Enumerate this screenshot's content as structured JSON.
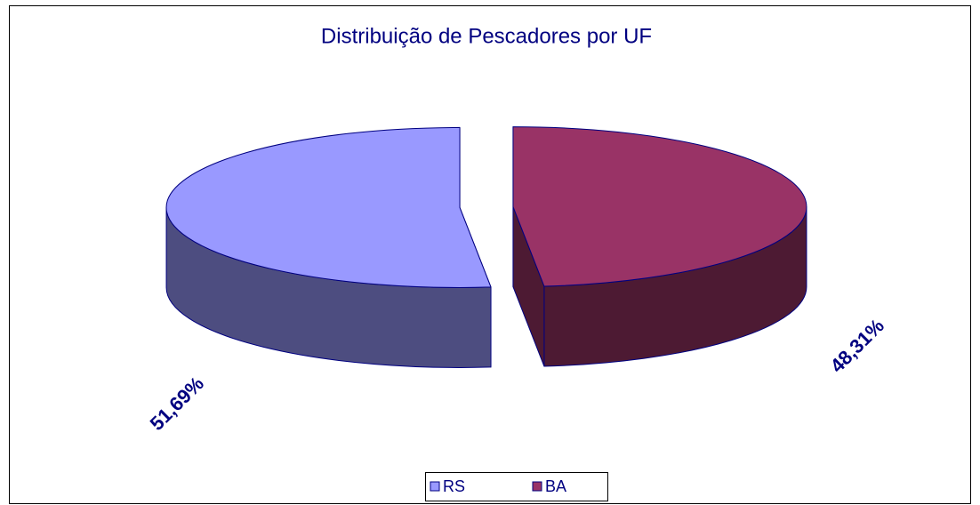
{
  "chart_data": {
    "type": "pie",
    "title": "Distribuição de Pescadores por UF",
    "categories": [
      "RS",
      "BA"
    ],
    "values": [
      51.69,
      48.31
    ],
    "value_labels": [
      "51,69%",
      "48,31%"
    ],
    "colors": [
      "#9999ff",
      "#993366"
    ],
    "legend": "bottom"
  }
}
